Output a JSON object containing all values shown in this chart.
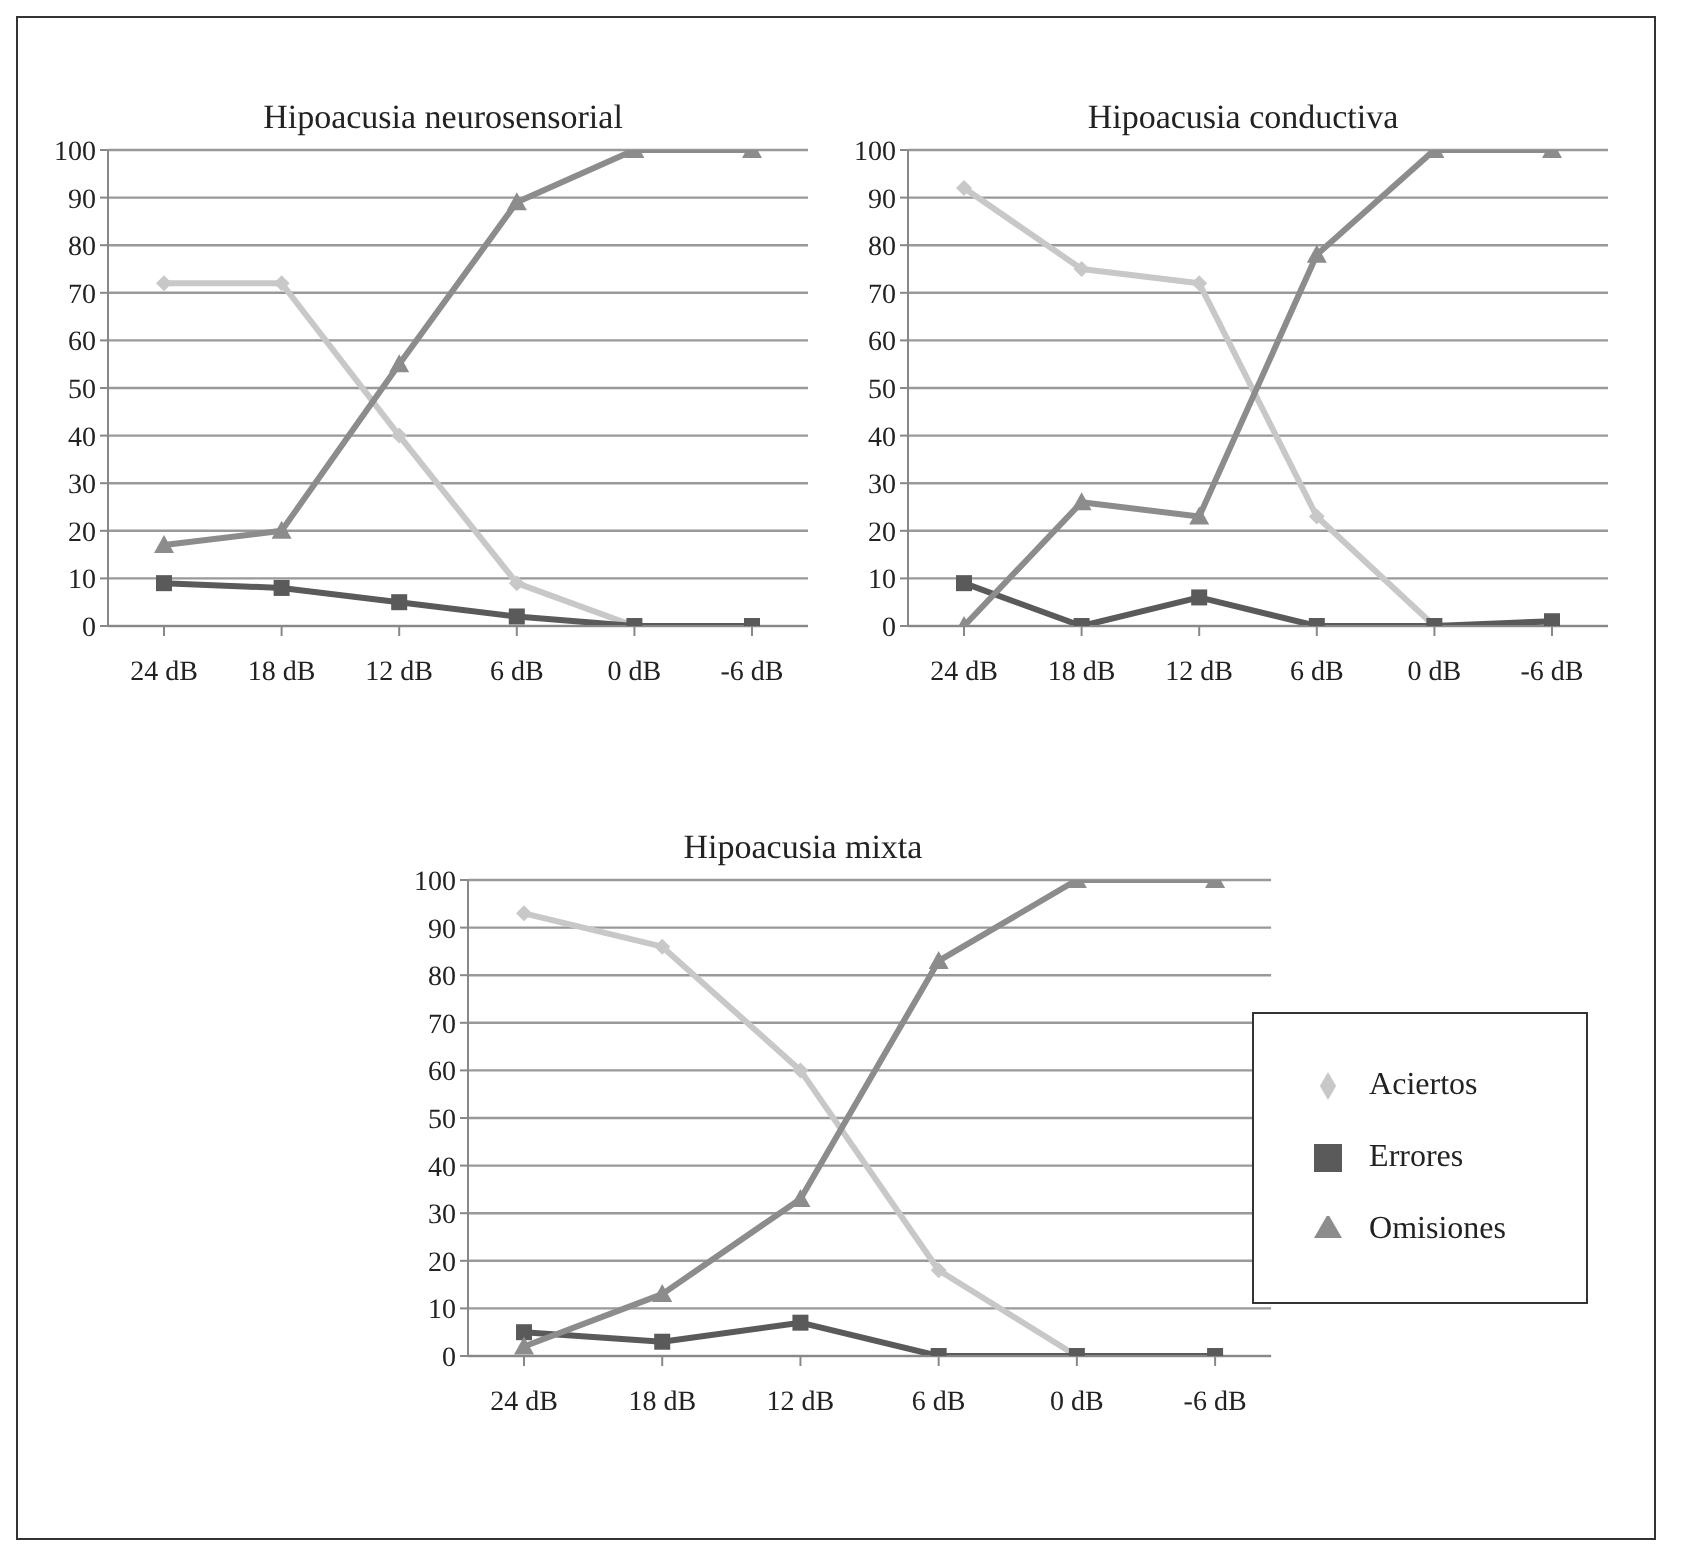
{
  "chart_data": [
    {
      "type": "line",
      "title": "Hipoacusia neurosensorial",
      "categories": [
        "24 dB",
        "18 dB",
        "12 dB",
        "6 dB",
        "0 dB",
        "-6 dB"
      ],
      "ylim": [
        0,
        100
      ],
      "yticks": [
        0,
        10,
        20,
        30,
        40,
        50,
        60,
        70,
        80,
        90,
        100
      ],
      "grid": "y",
      "legend": false,
      "line_style": "solid",
      "series": [
        {
          "color": "#c8c8c8",
          "marker": "diamond",
          "values": [
            72,
            72,
            40,
            9,
            0,
            0
          ]
        },
        {
          "color": "#5a5a5a",
          "marker": "square",
          "values": [
            9,
            8,
            5,
            2,
            0,
            0
          ]
        },
        {
          "color": "#8c8c8c",
          "marker": "triangle",
          "values": [
            17,
            20,
            55,
            89,
            100,
            100
          ]
        }
      ]
    },
    {
      "type": "line",
      "title": "Hipoacusia conductiva",
      "categories": [
        "24 dB",
        "18 dB",
        "12 dB",
        "6 dB",
        "0 dB",
        "-6 dB"
      ],
      "ylim": [
        0,
        100
      ],
      "yticks": [
        0,
        10,
        20,
        30,
        40,
        50,
        60,
        70,
        80,
        90,
        100
      ],
      "grid": "y",
      "legend": false,
      "line_style": "solid",
      "series": [
        {
          "color": "#c8c8c8",
          "marker": "diamond",
          "values": [
            92,
            75,
            72,
            23,
            0,
            0
          ]
        },
        {
          "color": "#5a5a5a",
          "marker": "square",
          "values": [
            9,
            0,
            6,
            0,
            0,
            1
          ]
        },
        {
          "color": "#8c8c8c",
          "marker": "triangle",
          "values": [
            0,
            26,
            23,
            78,
            100,
            100
          ]
        }
      ]
    },
    {
      "type": "line",
      "title": "Hipoacusia mixta",
      "categories": [
        "24 dB",
        "18 dB",
        "12 dB",
        "6 dB",
        "0 dB",
        "-6 dB"
      ],
      "ylim": [
        0,
        100
      ],
      "yticks": [
        0,
        10,
        20,
        30,
        40,
        50,
        60,
        70,
        80,
        90,
        100
      ],
      "grid": "y",
      "legend": "right",
      "line_style": "solid",
      "series": [
        {
          "name": "Aciertos",
          "color": "#c8c8c8",
          "marker": "diamond",
          "values": [
            93,
            86,
            60,
            18,
            0,
            0
          ]
        },
        {
          "name": "Errores",
          "color": "#5a5a5a",
          "marker": "square",
          "values": [
            5,
            3,
            7,
            0,
            0,
            0
          ]
        },
        {
          "name": "Omisiones",
          "color": "#8c8c8c",
          "marker": "triangle",
          "values": [
            2,
            13,
            33,
            83,
            100,
            100
          ]
        }
      ]
    }
  ]
}
